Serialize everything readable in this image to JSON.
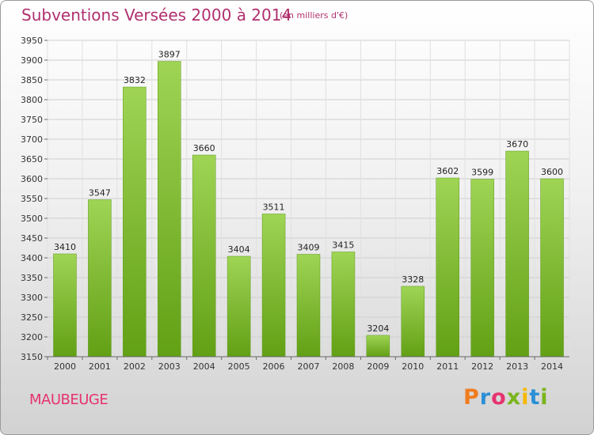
{
  "header": {
    "title": "Subventions Versées 2000 à 2014",
    "subtitle": "(en milliers d'€)"
  },
  "footer": {
    "commune": "MAUBEUGE",
    "logo": "Proxiti",
    "logo_colors": [
      "#f07c1e",
      "#2a8fd6",
      "#e5336f",
      "#7ab51d",
      "#f5b800",
      "#2a8fd6",
      "#7ab51d"
    ]
  },
  "chart_data": {
    "type": "bar",
    "categories": [
      "2000",
      "2001",
      "2002",
      "2003",
      "2004",
      "2005",
      "2006",
      "2007",
      "2008",
      "2009",
      "2010",
      "2011",
      "2012",
      "2013",
      "2014"
    ],
    "values": [
      3410,
      3547,
      3832,
      3897,
      3660,
      3404,
      3511,
      3409,
      3415,
      3204,
      3328,
      3602,
      3599,
      3670,
      3600
    ],
    "ylim": [
      3150,
      3950
    ],
    "yticks": [
      3150,
      3200,
      3250,
      3300,
      3350,
      3400,
      3450,
      3500,
      3550,
      3600,
      3650,
      3700,
      3750,
      3800,
      3850,
      3900,
      3950
    ],
    "grid": true,
    "bar_color": "#7cc034",
    "xlabel": "",
    "ylabel": ""
  }
}
